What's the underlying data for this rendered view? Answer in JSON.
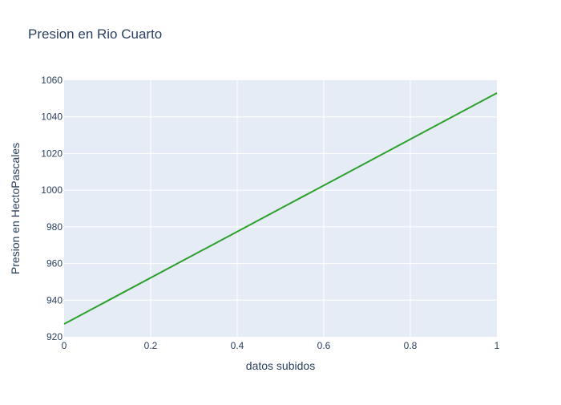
{
  "chart_data": {
    "type": "line",
    "title": "Presion en Rio Cuarto",
    "xlabel": "datos subidos",
    "ylabel": "Presion en HectoPascales",
    "xlim": [
      0,
      1
    ],
    "ylim": [
      920,
      1060
    ],
    "x_ticks": [
      "0",
      "0.2",
      "0.4",
      "0.6",
      "0.8",
      "1"
    ],
    "y_ticks": [
      "920",
      "940",
      "960",
      "980",
      "1000",
      "1020",
      "1040",
      "1060"
    ],
    "grid": true,
    "legend": "none",
    "colors": {
      "line": "#2ca02c",
      "plot_bg": "#e5ecf6",
      "grid": "#ffffff",
      "text": "#2a3f5f"
    },
    "series": [
      {
        "x": [
          0,
          1
        ],
        "y": [
          927,
          1053
        ]
      }
    ]
  }
}
